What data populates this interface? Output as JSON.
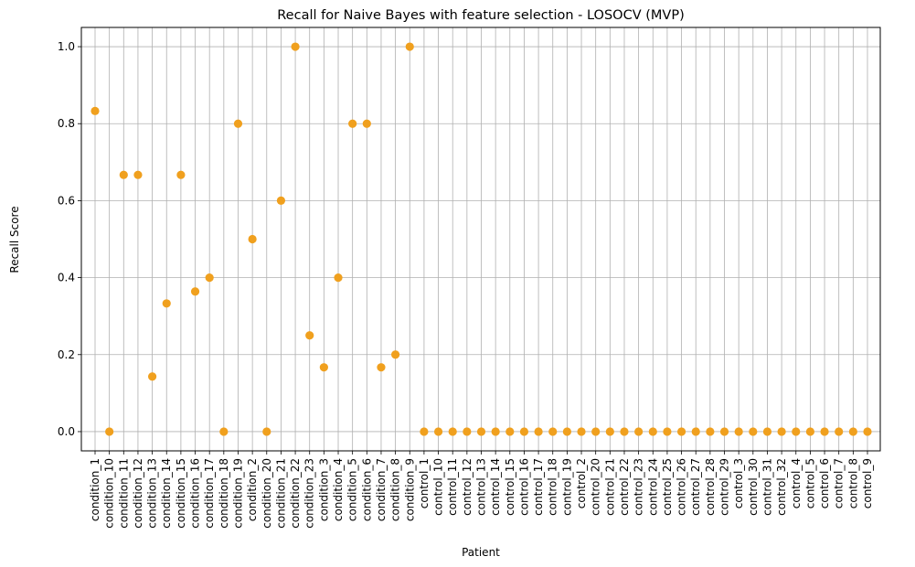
{
  "chart_data": {
    "type": "scatter",
    "title": "Recall for Naive Bayes with feature selection - LOSOCV (MVP)",
    "xlabel": "Patient",
    "ylabel": "Recall Score",
    "ylim": [
      -0.05,
      1.05
    ],
    "yticks": [
      0.0,
      0.2,
      0.4,
      0.6,
      0.8,
      1.0
    ],
    "ytick_labels": [
      "0.0",
      "0.2",
      "0.4",
      "0.6",
      "0.8",
      "1.0"
    ],
    "grid": true,
    "marker_color": "#f0a01e",
    "categories": [
      "condition_1",
      "condition_10",
      "condition_11",
      "condition_12",
      "condition_13",
      "condition_14",
      "condition_15",
      "condition_16",
      "condition_17",
      "condition_18",
      "condition_19",
      "condition_2",
      "condition_20",
      "condition_21",
      "condition_22",
      "condition_23",
      "condition_3",
      "condition_4",
      "condition_5",
      "condition_6",
      "condition_7",
      "condition_8",
      "condition_9",
      "control_1",
      "control_10",
      "control_11",
      "control_12",
      "control_13",
      "control_14",
      "control_15",
      "control_16",
      "control_17",
      "control_18",
      "control_19",
      "control_2",
      "control_20",
      "control_21",
      "control_22",
      "control_23",
      "control_24",
      "control_25",
      "control_26",
      "control_27",
      "control_28",
      "control_29",
      "control_3",
      "control_30",
      "control_31",
      "control_32",
      "control_4",
      "control_5",
      "control_6",
      "control_7",
      "control_8",
      "control_9"
    ],
    "values": [
      0.833,
      0.0,
      0.667,
      0.667,
      0.143,
      0.333,
      0.667,
      0.364,
      0.4,
      0.0,
      0.8,
      0.5,
      0.0,
      0.6,
      1.0,
      0.25,
      0.167,
      0.4,
      0.8,
      0.8,
      0.167,
      0.2,
      1.0,
      0,
      0,
      0,
      0,
      0,
      0,
      0,
      0,
      0,
      0,
      0,
      0,
      0,
      0,
      0,
      0,
      0,
      0,
      0,
      0,
      0,
      0,
      0,
      0,
      0,
      0,
      0,
      0,
      0,
      0,
      0,
      0
    ]
  }
}
